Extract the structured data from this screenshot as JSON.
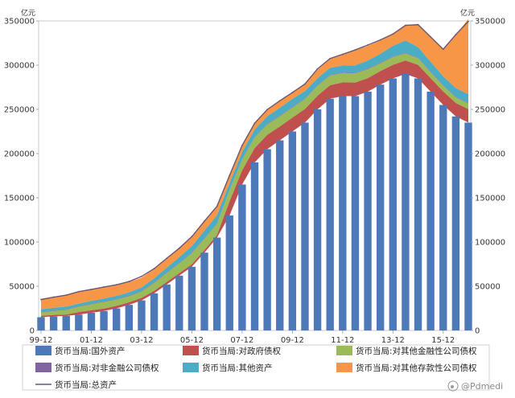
{
  "chart_data": {
    "type": "area",
    "y_unit_label_left": "亿元",
    "y_unit_label_right": "亿元",
    "ylim": [
      0,
      350000
    ],
    "yticks": [
      "0",
      "50000",
      "100000",
      "150000",
      "200000",
      "250000",
      "300000",
      "350000"
    ],
    "x_tick_labels": [
      "99-12",
      "01-12",
      "03-12",
      "05-12",
      "07-12",
      "09-12",
      "11-12",
      "13-12",
      "15-12"
    ],
    "x": [
      "1999-12",
      "2000-06",
      "2000-12",
      "2001-06",
      "2001-12",
      "2002-06",
      "2002-12",
      "2003-06",
      "2003-12",
      "2004-06",
      "2004-12",
      "2005-06",
      "2005-12",
      "2006-06",
      "2006-12",
      "2007-06",
      "2007-12",
      "2008-06",
      "2008-12",
      "2009-06",
      "2009-12",
      "2010-06",
      "2010-12",
      "2011-06",
      "2011-12",
      "2012-06",
      "2012-12",
      "2013-06",
      "2013-12",
      "2014-06",
      "2014-12",
      "2015-06",
      "2015-12",
      "2016-06",
      "2016-12"
    ],
    "series": [
      {
        "name": "货币当局:国外资产",
        "color": "#4e79b8",
        "chart_type": "bar",
        "values": [
          15000,
          16000,
          16500,
          18000,
          20000,
          22000,
          25000,
          29000,
          34000,
          42000,
          52000,
          62000,
          72000,
          88000,
          105000,
          130000,
          165000,
          190000,
          205000,
          215000,
          225000,
          235000,
          250000,
          262000,
          265000,
          265000,
          270000,
          278000,
          285000,
          290000,
          285000,
          270000,
          255000,
          242000,
          235000
        ]
      },
      {
        "name": "货币当局:对政府债权",
        "color": "#c0504d",
        "chart_type": "area",
        "values": [
          1600,
          1600,
          1600,
          2800,
          2800,
          2800,
          2800,
          2800,
          2900,
          2900,
          2900,
          2900,
          2900,
          2900,
          2900,
          16000,
          16000,
          16300,
          16300,
          15700,
          15700,
          15400,
          15400,
          15400,
          15400,
          15300,
          15300,
          15300,
          15300,
          15300,
          15300,
          15300,
          15300,
          15300,
          15300
        ]
      },
      {
        "name": "货币当局:对其他金融性公司债权",
        "color": "#9bbb59",
        "chart_type": "area",
        "values": [
          3800,
          4500,
          5200,
          6000,
          7000,
          7500,
          7200,
          7000,
          7200,
          9000,
          10000,
          11000,
          12500,
          13000,
          12700,
          12500,
          12000,
          11900,
          11800,
          11600,
          11500,
          11300,
          11200,
          11000,
          10600,
          10400,
          10300,
          8900,
          8900,
          8000,
          7600,
          6800,
          6500,
          6300,
          6300
        ]
      },
      {
        "name": "货币当局:对非金融公司债权",
        "color": "#8064a2",
        "chart_type": "area",
        "values": [
          600,
          600,
          600,
          600,
          600,
          600,
          600,
          600,
          600,
          600,
          600,
          600,
          600,
          600,
          600,
          600,
          600,
          600,
          600,
          600,
          600,
          600,
          600,
          600,
          600,
          600,
          600,
          600,
          600,
          600,
          600,
          600,
          600,
          600,
          600
        ]
      },
      {
        "name": "货币当局:其他资产",
        "color": "#4bacc6",
        "chart_type": "area",
        "values": [
          3000,
          3000,
          3000,
          3000,
          3000,
          3200,
          3500,
          3800,
          4000,
          4500,
          5500,
          6500,
          7500,
          8500,
          9000,
          7500,
          8000,
          8500,
          8500,
          9000,
          9000,
          8500,
          8000,
          8000,
          8000,
          8500,
          9000,
          10000,
          12000,
          14000,
          12000,
          11000,
          10000,
          10000,
          10000
        ]
      },
      {
        "name": "货币当局:对其他存款性公司债权",
        "color": "#f79646",
        "chart_type": "area",
        "values": [
          11000,
          12000,
          13000,
          13500,
          13000,
          12500,
          12000,
          11500,
          11000,
          10500,
          10000,
          9500,
          10000,
          10000,
          9500,
          8000,
          7000,
          7500,
          8000,
          7800,
          7200,
          7200,
          9500,
          10000,
          12000,
          17000,
          16500,
          15000,
          13200,
          17000,
          25000,
          28000,
          31000,
          60000,
          85000
        ]
      },
      {
        "name": "货币当局:总资产",
        "color": "#6b5670",
        "chart_type": "line",
        "values": [
          35000,
          37700,
          39900,
          43900,
          46400,
          49100,
          51700,
          55300,
          61100,
          69900,
          81600,
          93000,
          106100,
          123600,
          140400,
          175200,
          209200,
          234400,
          249800,
          259700,
          269000,
          278700,
          295800,
          307500,
          312200,
          317200,
          322700,
          328500,
          335200,
          345000,
          345800,
          331900,
          318000,
          334500,
          349400
        ]
      }
    ]
  },
  "legend": [
    {
      "label": "货币当局:国外资产",
      "color": "#4e79b8",
      "kind": "box"
    },
    {
      "label": "货币当局:对政府债权",
      "color": "#c0504d",
      "kind": "box"
    },
    {
      "label": "货币当局:对其他金融性公司债权",
      "color": "#9bbb59",
      "kind": "box"
    },
    {
      "label": "货币当局:对非金融公司债权",
      "color": "#8064a2",
      "kind": "box"
    },
    {
      "label": "货币当局:其他资产",
      "color": "#4bacc6",
      "kind": "box"
    },
    {
      "label": "货币当局:对其他存款性公司债权",
      "color": "#f79646",
      "kind": "box"
    },
    {
      "label": "货币当局:总资产",
      "color": "#6b5670",
      "kind": "line"
    }
  ],
  "watermark": "@Pdmedi"
}
